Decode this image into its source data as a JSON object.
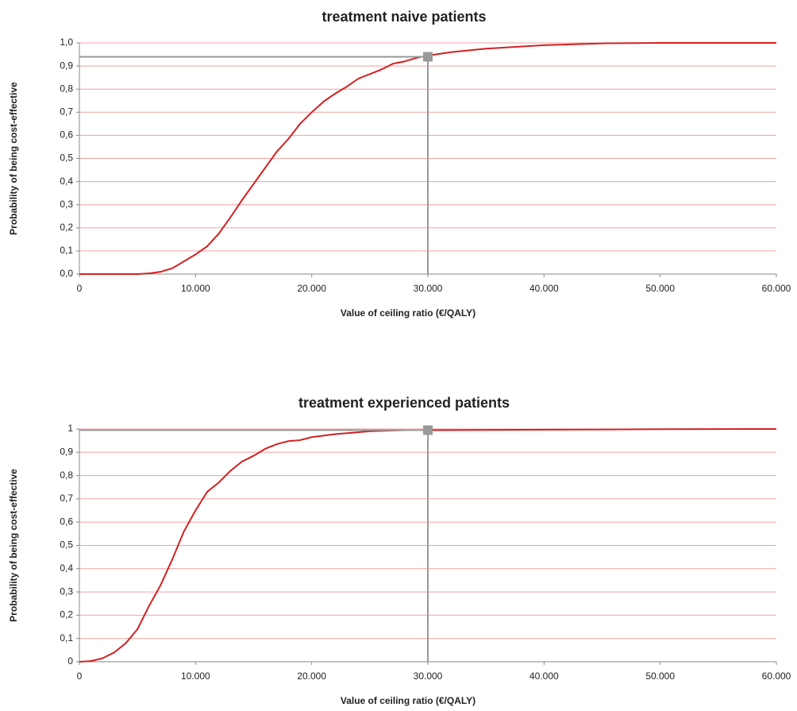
{
  "chart_data": [
    {
      "type": "line",
      "title": "treatment naive patients",
      "xlabel": "Value of ceiling ratio (€/QALY)",
      "ylabel": "Probability of being cost-effective",
      "x": [
        0,
        5000,
        6000,
        7000,
        8000,
        9000,
        10000,
        11000,
        12000,
        13000,
        14000,
        15000,
        16000,
        17000,
        18000,
        19000,
        20000,
        21000,
        22000,
        23000,
        24000,
        25000,
        26000,
        27000,
        28000,
        29000,
        30000,
        32000,
        35000,
        40000,
        45000,
        50000,
        55000,
        60000
      ],
      "series": [
        {
          "name": "treatment naive patients",
          "color": "#d42020",
          "values": [
            0,
            0,
            0.003,
            0.01,
            0.025,
            0.055,
            0.085,
            0.12,
            0.175,
            0.245,
            0.32,
            0.39,
            0.46,
            0.53,
            0.585,
            0.65,
            0.7,
            0.745,
            0.78,
            0.81,
            0.845,
            0.865,
            0.885,
            0.91,
            0.92,
            0.935,
            0.945,
            0.96,
            0.975,
            0.99,
            0.998,
            1,
            1,
            1
          ]
        }
      ],
      "marker": {
        "x": 30000,
        "y": 0.94,
        "color": "#999999"
      },
      "xlim": [
        0,
        60000
      ],
      "xticks": [
        0,
        {
          "value": 10000,
          "label": "10.000"
        },
        {
          "value": 20000,
          "label": "20.000"
        },
        {
          "value": 30000,
          "label": "30.000"
        },
        {
          "value": 40000,
          "label": "40.000"
        },
        {
          "value": 50000,
          "label": "50.000"
        },
        {
          "value": 60000,
          "label": "60.000"
        }
      ],
      "ylim": [
        0,
        1
      ],
      "yticks": [
        {
          "value": 0,
          "label": "0,0"
        },
        {
          "value": 0.1,
          "label": "0,1"
        },
        {
          "value": 0.2,
          "label": "0,2"
        },
        {
          "value": 0.3,
          "label": "0,3"
        },
        {
          "value": 0.4,
          "label": "0,4"
        },
        {
          "value": 0.5,
          "label": "0,5"
        },
        {
          "value": 0.6,
          "label": "0,6"
        },
        {
          "value": 0.7,
          "label": "0,7"
        },
        {
          "value": 0.8,
          "label": "0,8"
        },
        {
          "value": 0.9,
          "label": "0,9"
        },
        {
          "value": 1,
          "label": "1,0"
        }
      ],
      "grid": true,
      "grid_color": "#f2a0a0"
    },
    {
      "type": "line",
      "title": "treatment experienced patients",
      "xlabel": "Value of ceiling ratio (€/QALY)",
      "ylabel": "Probability of being cost-effective",
      "x": [
        0,
        1000,
        2000,
        3000,
        4000,
        5000,
        6000,
        7000,
        8000,
        9000,
        10000,
        11000,
        12000,
        13000,
        14000,
        15000,
        16000,
        17000,
        18000,
        19000,
        20000,
        22000,
        25000,
        28000,
        30000,
        40000,
        50000,
        60000
      ],
      "series": [
        {
          "name": "treatment experienced patients",
          "color": "#d42020",
          "values": [
            0,
            0.003,
            0.015,
            0.04,
            0.08,
            0.14,
            0.24,
            0.33,
            0.44,
            0.56,
            0.65,
            0.73,
            0.77,
            0.82,
            0.86,
            0.885,
            0.915,
            0.935,
            0.948,
            0.952,
            0.965,
            0.978,
            0.99,
            0.995,
            0.995,
            0.997,
            0.999,
            1
          ]
        }
      ],
      "marker": {
        "x": 30000,
        "y": 0.995,
        "color": "#999999"
      },
      "xlim": [
        0,
        60000
      ],
      "xticks": [
        0,
        {
          "value": 10000,
          "label": "10.000"
        },
        {
          "value": 20000,
          "label": "20.000"
        },
        {
          "value": 30000,
          "label": "30.000"
        },
        {
          "value": 40000,
          "label": "40.000"
        },
        {
          "value": 50000,
          "label": "50.000"
        },
        {
          "value": 60000,
          "label": "60.000"
        }
      ],
      "ylim": [
        0,
        1
      ],
      "yticks": [
        0,
        {
          "value": 0.1,
          "label": "0,1"
        },
        {
          "value": 0.2,
          "label": "0,2"
        },
        {
          "value": 0.3,
          "label": "0,3"
        },
        {
          "value": 0.4,
          "label": "0,4"
        },
        {
          "value": 0.5,
          "label": "0,5"
        },
        {
          "value": 0.6,
          "label": "0,6"
        },
        {
          "value": 0.7,
          "label": "0,7"
        },
        {
          "value": 0.8,
          "label": "0,8"
        },
        {
          "value": 0.9,
          "label": "0,9"
        },
        1
      ],
      "grid": true,
      "grid_color": "#f2a0a0"
    }
  ]
}
